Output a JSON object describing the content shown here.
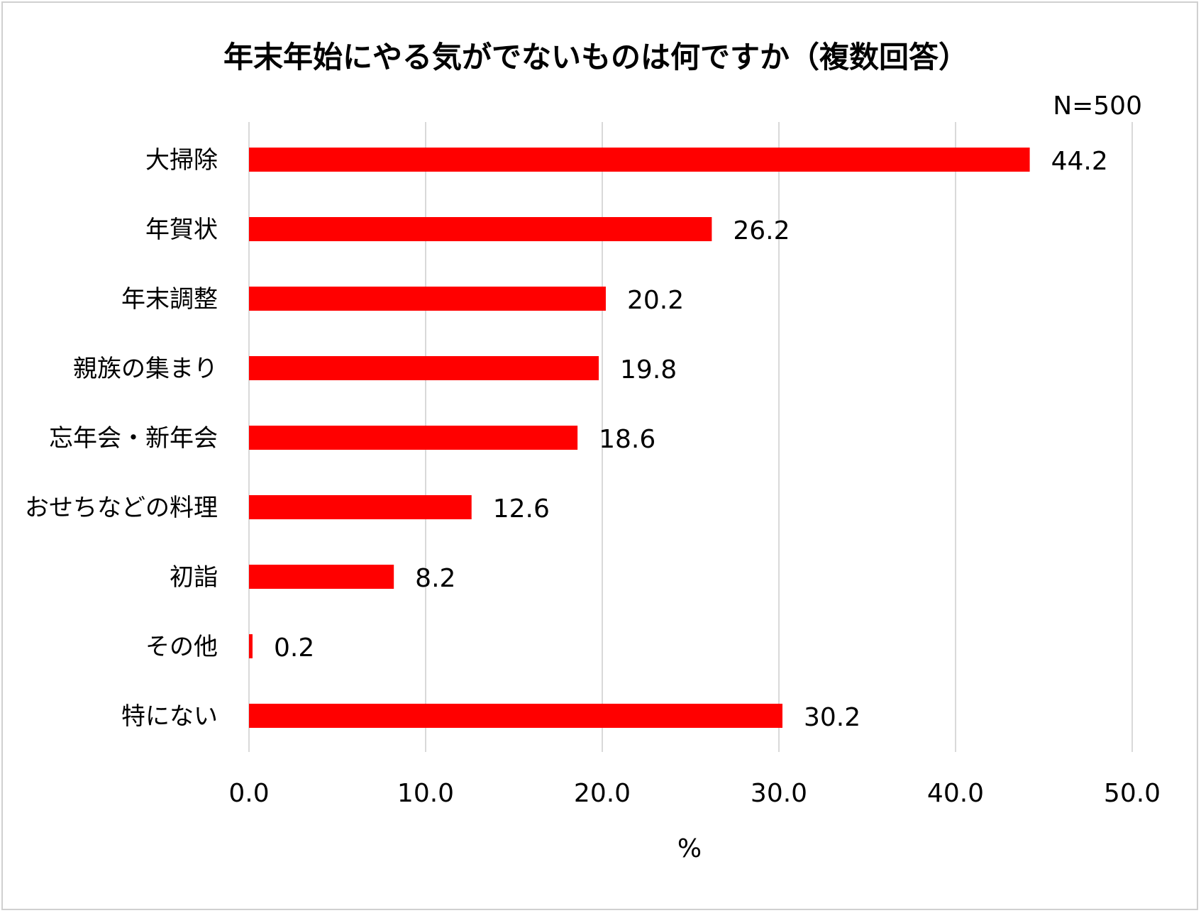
{
  "chart_data": {
    "type": "bar",
    "orientation": "horizontal",
    "title": "年末年始にやる気がでないものは何ですか（複数回答）",
    "note": "N=500",
    "xlabel": "%",
    "ylabel": "",
    "categories": [
      "大掃除",
      "年賀状",
      "年末調整",
      "親族の集まり",
      "忘年会・新年会",
      "おせちなどの料理",
      "初詣",
      "その他",
      "特にない"
    ],
    "values": [
      44.2,
      26.2,
      20.2,
      19.8,
      18.6,
      12.6,
      8.2,
      0.2,
      30.2
    ],
    "value_labels": [
      "44.2",
      "26.2",
      "20.2",
      "19.8",
      "18.6",
      "12.6",
      "8.2",
      "0.2",
      "30.2"
    ],
    "xlim": [
      0,
      50
    ],
    "ticks": [
      0,
      10,
      20,
      30,
      40,
      50
    ],
    "tick_labels": [
      "0.0",
      "10.0",
      "20.0",
      "30.0",
      "40.0",
      "50.0"
    ],
    "bar_color": "#ff0000",
    "grid": true,
    "grid_color": "#d9d9d9",
    "legend": "none"
  }
}
